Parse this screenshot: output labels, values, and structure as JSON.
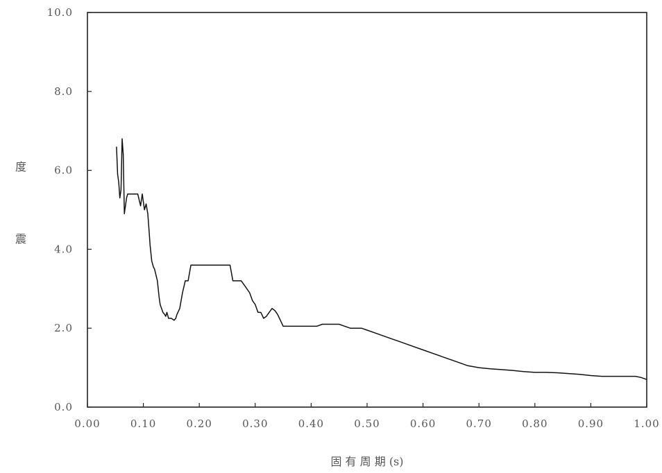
{
  "chart_data": {
    "type": "line",
    "title": "",
    "xlabel": "固 有 周 期 (s)",
    "ylabel_chars": [
      "度",
      "震"
    ],
    "xlim": [
      0.0,
      1.0
    ],
    "ylim": [
      0.0,
      10.0
    ],
    "x_ticks": [
      0.0,
      0.1,
      0.2,
      0.3,
      0.4,
      0.5,
      0.6,
      0.7,
      0.8,
      0.9,
      1.0
    ],
    "x_tick_labels": [
      "0.00",
      "0.10",
      "0.20",
      "0.30",
      "0.40",
      "0.50",
      "0.60",
      "0.70",
      "0.80",
      "0.90",
      "1.00"
    ],
    "y_ticks": [
      0,
      2,
      4,
      6,
      8,
      10
    ],
    "y_tick_labels": [
      "0.0",
      "2.0",
      "4.0",
      "6.0",
      "8.0",
      "10.0"
    ],
    "grid": false,
    "line_color": "#111111",
    "series": [
      {
        "x": [
          0.052,
          0.054,
          0.056,
          0.058,
          0.06,
          0.062,
          0.064,
          0.066,
          0.068,
          0.07,
          0.072,
          0.074,
          0.076,
          0.078,
          0.08,
          0.085,
          0.09,
          0.095,
          0.098,
          0.1,
          0.102,
          0.105,
          0.108,
          0.11,
          0.112,
          0.115,
          0.118,
          0.12,
          0.125,
          0.128,
          0.13,
          0.135,
          0.138,
          0.14,
          0.142,
          0.145,
          0.148,
          0.15,
          0.155,
          0.158,
          0.16,
          0.165,
          0.17,
          0.175,
          0.18,
          0.185,
          0.19,
          0.195,
          0.2,
          0.21,
          0.22,
          0.23,
          0.24,
          0.25,
          0.255,
          0.26,
          0.27,
          0.275,
          0.28,
          0.29,
          0.295,
          0.3,
          0.305,
          0.31,
          0.315,
          0.32,
          0.325,
          0.33,
          0.335,
          0.34,
          0.345,
          0.35,
          0.36,
          0.37,
          0.38,
          0.39,
          0.4,
          0.41,
          0.42,
          0.43,
          0.44,
          0.45,
          0.46,
          0.47,
          0.48,
          0.49,
          0.5,
          0.52,
          0.54,
          0.56,
          0.58,
          0.6,
          0.62,
          0.64,
          0.66,
          0.68,
          0.7,
          0.72,
          0.74,
          0.76,
          0.78,
          0.8,
          0.82,
          0.84,
          0.86,
          0.88,
          0.9,
          0.92,
          0.94,
          0.96,
          0.98,
          0.99,
          1.0
        ],
        "y": [
          6.6,
          5.9,
          5.7,
          5.3,
          5.5,
          6.8,
          6.4,
          4.9,
          5.1,
          5.3,
          5.4,
          5.4,
          5.4,
          5.4,
          5.4,
          5.4,
          5.4,
          5.1,
          5.4,
          5.2,
          5.0,
          5.15,
          4.9,
          4.5,
          4.1,
          3.7,
          3.55,
          3.5,
          3.2,
          2.8,
          2.6,
          2.4,
          2.35,
          2.3,
          2.4,
          2.25,
          2.25,
          2.25,
          2.2,
          2.25,
          2.35,
          2.5,
          2.9,
          3.2,
          3.2,
          3.6,
          3.6,
          3.6,
          3.6,
          3.6,
          3.6,
          3.6,
          3.6,
          3.6,
          3.6,
          3.2,
          3.2,
          3.2,
          3.1,
          2.9,
          2.7,
          2.6,
          2.4,
          2.4,
          2.25,
          2.3,
          2.4,
          2.5,
          2.45,
          2.35,
          2.2,
          2.05,
          2.05,
          2.05,
          2.05,
          2.05,
          2.05,
          2.05,
          2.1,
          2.1,
          2.1,
          2.1,
          2.05,
          2.0,
          2.0,
          2.0,
          1.95,
          1.85,
          1.75,
          1.65,
          1.55,
          1.45,
          1.35,
          1.25,
          1.15,
          1.05,
          1.0,
          0.97,
          0.95,
          0.93,
          0.9,
          0.88,
          0.88,
          0.87,
          0.85,
          0.83,
          0.8,
          0.78,
          0.78,
          0.78,
          0.78,
          0.75,
          0.7
        ]
      }
    ]
  }
}
